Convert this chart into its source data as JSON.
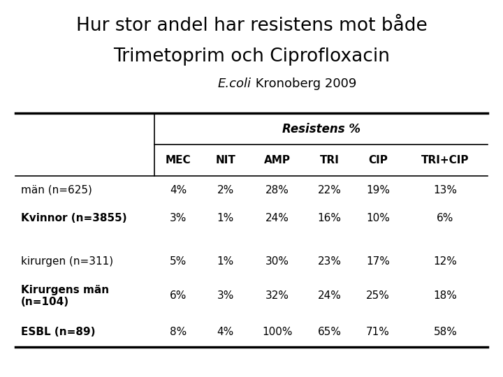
{
  "title_line1": "Hur stor andel har resistens mot både",
  "title_line2": "Trimetoprim och Ciprofloxacin",
  "subtitle_italic": "E.coli",
  "subtitle_normal": " Kronoberg 2009",
  "col_header_span": "Resistens %",
  "col_headers": [
    "MEC",
    "NIT",
    "AMP",
    "TRI",
    "CIP",
    "TRI+CIP"
  ],
  "row_labels": [
    "män (n=625)",
    "Kvinnor (n=3855)",
    "",
    "kirurgen (n=311)",
    "Kirurgens män\n(n=104)",
    "ESBL (n=89)"
  ],
  "row_label_bold": [
    false,
    true,
    false,
    false,
    true,
    true
  ],
  "data": [
    [
      "4%",
      "2%",
      "28%",
      "22%",
      "19%",
      "13%"
    ],
    [
      "3%",
      "1%",
      "24%",
      "16%",
      "10%",
      "6%"
    ],
    [
      "",
      "",
      "",
      "",
      "",
      ""
    ],
    [
      "5%",
      "1%",
      "30%",
      "23%",
      "17%",
      "12%"
    ],
    [
      "6%",
      "3%",
      "32%",
      "24%",
      "25%",
      "18%"
    ],
    [
      "8%",
      "4%",
      "100%",
      "65%",
      "71%",
      "58%"
    ]
  ],
  "bg_color": "#ffffff",
  "text_color": "#000000",
  "line_color": "#000000",
  "title_fontsize": 19,
  "subtitle_fontsize": 13,
  "header_fontsize": 11,
  "cell_fontsize": 11
}
